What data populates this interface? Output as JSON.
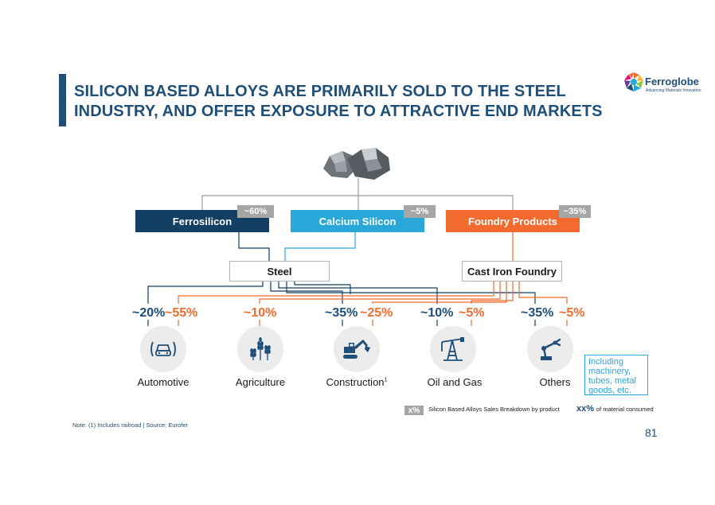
{
  "slide": {
    "title": "SILICON BASED ALLOYS ARE PRIMARILY SOLD TO THE STEEL INDUSTRY, AND OFFER EXPOSURE TO ATTRACTIVE END MARKETS",
    "page_number": "81",
    "footnote": "Note: (1) Includes railroad | Source: Eurofer"
  },
  "logo": {
    "name": "Ferroglobe",
    "tagline": "Advancing Materials Innovation"
  },
  "products": [
    {
      "label": "Ferrosilicon",
      "share": "~60%",
      "color": "#123f63"
    },
    {
      "label": "Calcium Silicon",
      "share": "~5%",
      "color": "#29a7d8"
    },
    {
      "label": "Foundry Products",
      "share": "~35%",
      "color": "#f26a2e"
    }
  ],
  "segments": {
    "steel": "Steel",
    "cast_iron_foundry": "Cast Iron Foundry"
  },
  "markets": [
    {
      "label": "Automotive",
      "steel_pct": "~20%",
      "foundry_pct": "~55%",
      "icon": "car-icon"
    },
    {
      "label": "Agriculture",
      "steel_pct": "",
      "foundry_pct": "~10%",
      "icon": "wheat-icon"
    },
    {
      "label": "Construction",
      "label_sup": "1",
      "steel_pct": "~35%",
      "foundry_pct": "~25%",
      "icon": "excavator-icon"
    },
    {
      "label": "Oil and Gas",
      "steel_pct": "~10%",
      "foundry_pct": "~5%",
      "icon": "oil-derrick-icon"
    },
    {
      "label": "Others",
      "steel_pct": "~35%",
      "foundry_pct": "~5%",
      "icon": "robot-arm-icon"
    }
  ],
  "callout": "Including machinery, tubes, metal goods, etc.",
  "legend": {
    "swatch_label": "x%",
    "swatch_text": "Silicon Based Alloys Sales Breakdown by product",
    "xx_label": "xx%",
    "xx_text": "of material consumed"
  },
  "colors": {
    "navy": "#1f4e79",
    "blue": "#29a7d8",
    "orange": "#f26a2e",
    "gray": "#a6a6a6"
  }
}
